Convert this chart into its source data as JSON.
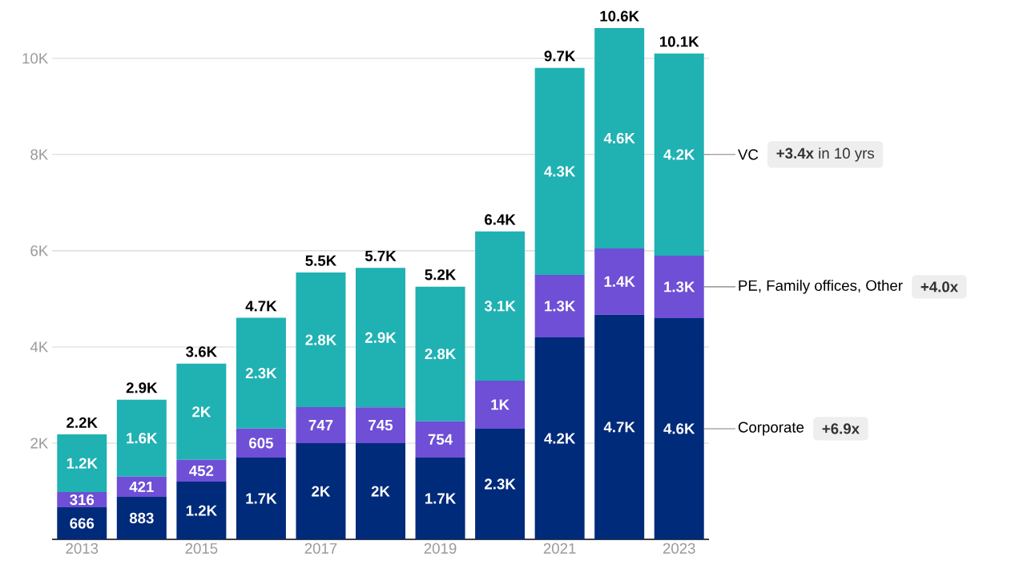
{
  "chart_data": {
    "type": "bar",
    "stacked": true,
    "categories": [
      "2013",
      null,
      "2015",
      null,
      "2017",
      null,
      "2019",
      null,
      "2021",
      null,
      "2023"
    ],
    "series": [
      {
        "name": "Corporate",
        "color": "#002a7a",
        "values": [
          666,
          883,
          1200,
          1700,
          2000,
          2000,
          1700,
          2300,
          4200,
          4670,
          4600
        ],
        "value_labels": [
          "666",
          "883",
          "1.2K",
          "1.7K",
          "2K",
          "2K",
          "1.7K",
          "2.3K",
          "4.2K",
          "4.7K",
          "4.6K"
        ]
      },
      {
        "name": "PE, Family offices, Other",
        "color": "#6e4fd6",
        "values": [
          316,
          421,
          452,
          605,
          747,
          745,
          754,
          1000,
          1300,
          1380,
          1300
        ],
        "value_labels": [
          "316",
          "421",
          "452",
          "605",
          "747",
          "745",
          "754",
          "1K",
          "1.3K",
          "1.4K",
          "1.3K"
        ]
      },
      {
        "name": "VC",
        "color": "#20b1b3",
        "values": [
          1200,
          1600,
          2000,
          2300,
          2800,
          2900,
          2800,
          3100,
          4300,
          4580,
          4200
        ],
        "value_labels": [
          "1.2K",
          "1.6K",
          "2K",
          "2.3K",
          "2.8K",
          "2.9K",
          "2.8K",
          "3.1K",
          "4.3K",
          "4.6K",
          "4.2K"
        ]
      }
    ],
    "totals": [
      "2.2K",
      "2.9K",
      "3.6K",
      "4.7K",
      "5.5K",
      "5.7K",
      "5.2K",
      "6.4K",
      "9.7K",
      "10.6K",
      "10.1K"
    ],
    "ylim": [
      0,
      10630
    ],
    "yticks": [
      {
        "value": 2000,
        "label": "2K"
      },
      {
        "value": 4000,
        "label": "4K"
      },
      {
        "value": 6000,
        "label": "6K"
      },
      {
        "value": 8000,
        "label": "8K"
      },
      {
        "value": 10000,
        "label": "10K"
      }
    ],
    "grid": "y",
    "legend": false,
    "annotations": [
      "**+3.4x** in 10 yrs",
      "**+4.0x**",
      "**+6.9x**"
    ]
  }
}
